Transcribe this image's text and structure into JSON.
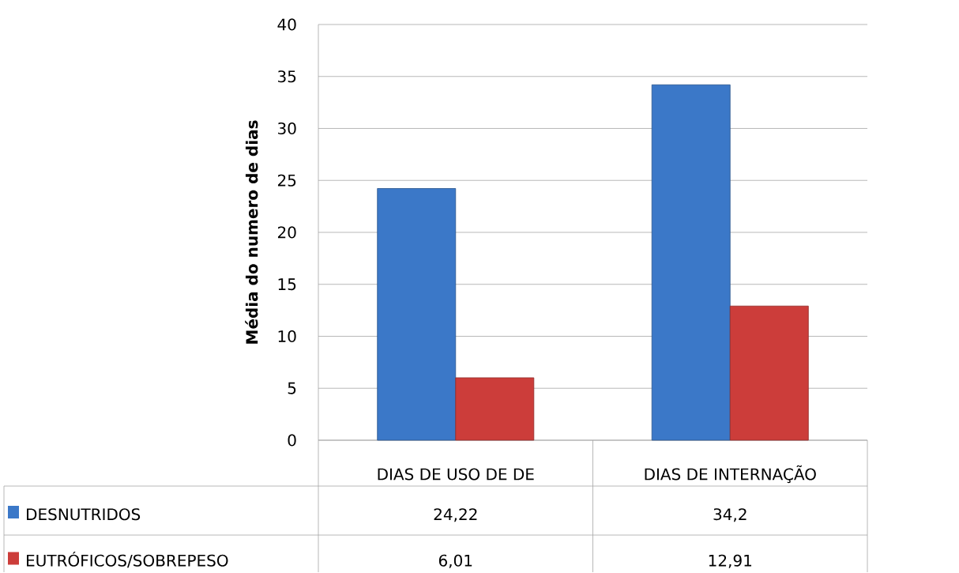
{
  "chart_data": {
    "type": "bar",
    "ylabel": "Média do numero de dias",
    "categories": [
      "DIAS DE USO DE DE",
      "DIAS DE INTERNAÇÃO"
    ],
    "series": [
      {
        "name": "DESNUTRIDOS",
        "color": "#3b78c8",
        "values": [
          24.22,
          34.2
        ],
        "value_labels": [
          "24,22",
          "34,2"
        ]
      },
      {
        "name": "EUTRÓFICOS/SOBREPESO",
        "color": "#cc3d3a",
        "values": [
          6.01,
          12.91
        ],
        "value_labels": [
          "6,01",
          "12,91"
        ]
      }
    ],
    "ylim": [
      0,
      40
    ],
    "yticks": [
      0,
      5,
      10,
      15,
      20,
      25,
      30,
      35,
      40
    ],
    "grid": "y",
    "legend": "bottom"
  }
}
